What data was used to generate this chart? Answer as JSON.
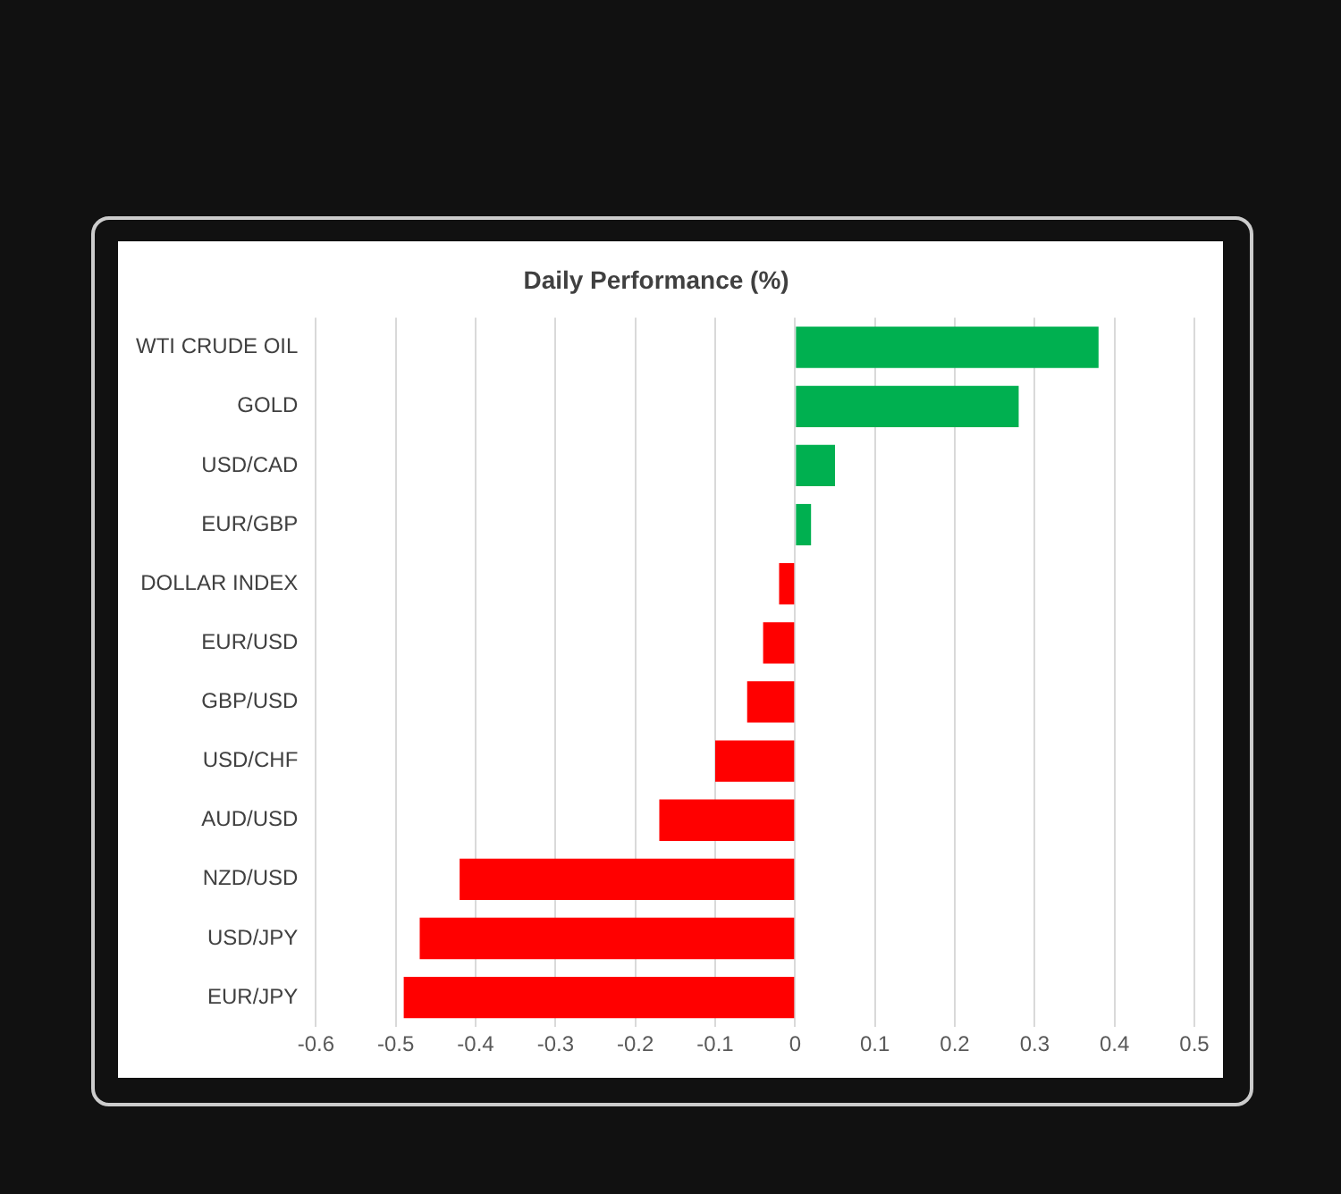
{
  "chart_data": {
    "type": "bar",
    "orientation": "horizontal",
    "title": "Daily Performance (%)",
    "categories": [
      "WTI CRUDE OIL",
      "GOLD",
      "USD/CAD",
      "EUR/GBP",
      "DOLLAR INDEX",
      "EUR/USD",
      "GBP/USD",
      "USD/CHF",
      "AUD/USD",
      "NZD/USD",
      "USD/JPY",
      "EUR/JPY"
    ],
    "values": [
      0.38,
      0.28,
      0.05,
      0.02,
      -0.02,
      -0.04,
      -0.06,
      -0.1,
      -0.17,
      -0.42,
      -0.47,
      -0.49
    ],
    "colors": [
      "#00b050",
      "#00b050",
      "#00b050",
      "#00b050",
      "#ff0000",
      "#ff0000",
      "#ff0000",
      "#ff0000",
      "#ff0000",
      "#ff0000",
      "#ff0000",
      "#ff0000"
    ],
    "xlim": [
      -0.6,
      0.5
    ],
    "xticks": [
      -0.6,
      -0.5,
      -0.4,
      -0.3,
      -0.2,
      -0.1,
      0,
      0.1,
      0.2,
      0.3,
      0.4,
      0.5
    ],
    "grid": "x",
    "legend": false
  }
}
